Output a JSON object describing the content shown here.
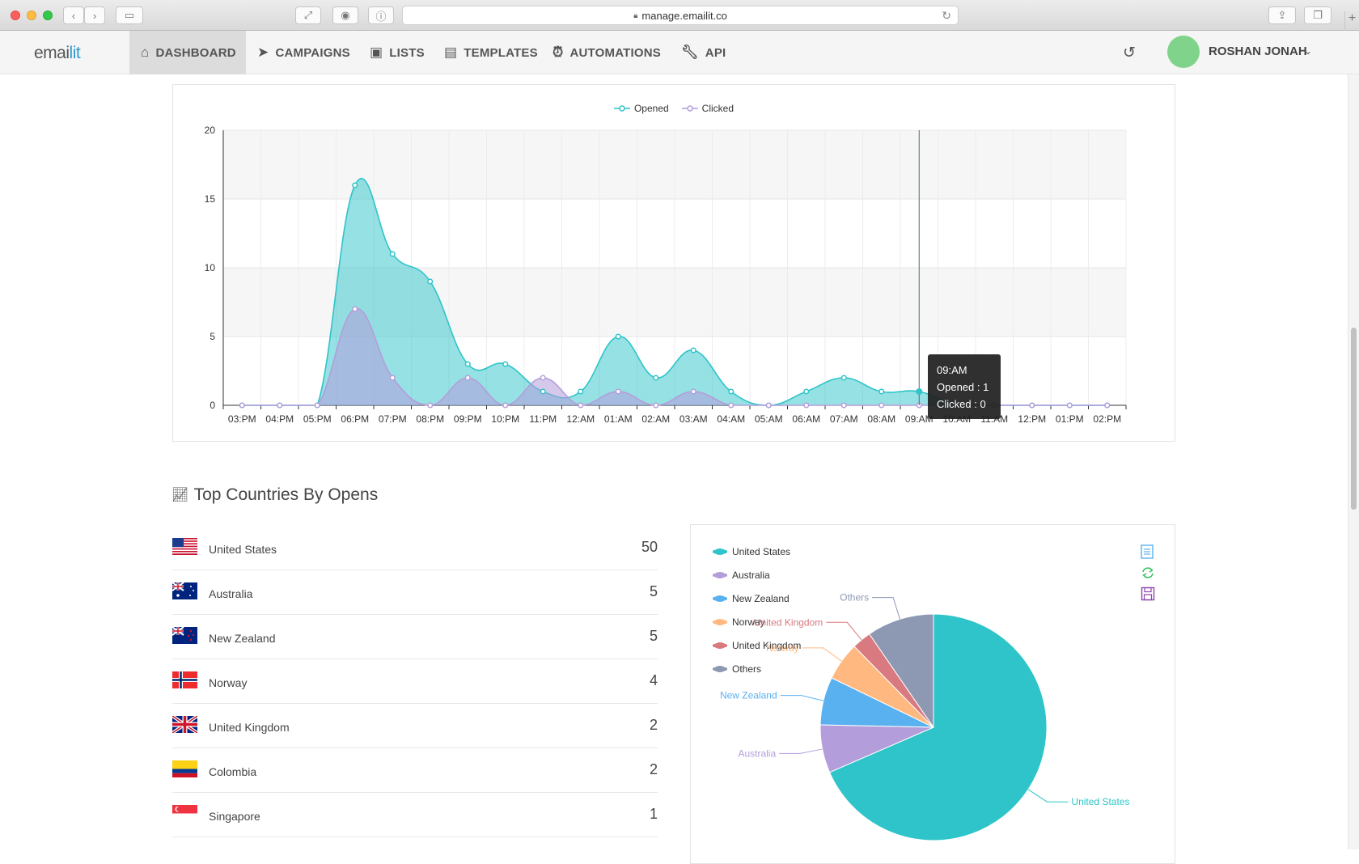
{
  "browser": {
    "url": "manage.emailit.co"
  },
  "nav": {
    "logo": "emailit",
    "items": [
      {
        "label": "DASHBOARD",
        "icon": "home-icon",
        "active": true
      },
      {
        "label": "CAMPAIGNS",
        "icon": "paper-plane-icon",
        "active": false
      },
      {
        "label": "LISTS",
        "icon": "address-book-icon",
        "active": false
      },
      {
        "label": "TEMPLATES",
        "icon": "newspaper-icon",
        "active": false
      },
      {
        "label": "AUTOMATIONS",
        "icon": "alarm-clock-icon",
        "active": false
      },
      {
        "label": "API",
        "icon": "wrench-icon",
        "active": false
      }
    ],
    "user_name": "ROSHAN JONAH"
  },
  "line_chart": {
    "chart_data": {
      "type": "area",
      "x": [
        "03:PM",
        "04:PM",
        "05:PM",
        "06:PM",
        "07:PM",
        "08:PM",
        "09:PM",
        "10:PM",
        "11:PM",
        "12:AM",
        "01:AM",
        "02:AM",
        "03:AM",
        "04:AM",
        "05:AM",
        "06:AM",
        "07:AM",
        "08:AM",
        "09:AM",
        "10:AM",
        "11:AM",
        "12:PM",
        "01:PM",
        "02:PM"
      ],
      "series": [
        {
          "name": "Opened",
          "color": "#2ec4c9",
          "values": [
            0,
            0,
            0,
            16,
            11,
            9,
            3,
            3,
            1,
            1,
            5,
            2,
            4,
            1,
            0,
            1,
            2,
            1,
            1,
            0,
            0,
            0,
            0,
            0
          ]
        },
        {
          "name": "Clicked",
          "color": "#b39ddb",
          "values": [
            0,
            0,
            0,
            7,
            2,
            0,
            2,
            0,
            2,
            0,
            1,
            0,
            1,
            0,
            0,
            0,
            0,
            0,
            0,
            0,
            0,
            0,
            0,
            0
          ]
        }
      ],
      "ylim": [
        0,
        20
      ],
      "yticks": [
        0,
        5,
        10,
        15,
        20
      ],
      "legend": "top-center",
      "grid": true
    },
    "tooltip": {
      "time": "09:AM",
      "opened": "Opened : 1",
      "clicked": "Clicked : 0"
    }
  },
  "countries_section": {
    "title": "Top Countries By Opens",
    "rows": [
      {
        "name": "United States",
        "count": "50",
        "flag": "us"
      },
      {
        "name": "Australia",
        "count": "5",
        "flag": "au"
      },
      {
        "name": "New Zealand",
        "count": "5",
        "flag": "nz"
      },
      {
        "name": "Norway",
        "count": "4",
        "flag": "no"
      },
      {
        "name": "United Kingdom",
        "count": "2",
        "flag": "gb"
      },
      {
        "name": "Colombia",
        "count": "2",
        "flag": "co"
      },
      {
        "name": "Singapore",
        "count": "1",
        "flag": "sg"
      }
    ]
  },
  "pie_chart": {
    "chart_data": {
      "type": "pie",
      "legend": "top-left",
      "slices": [
        {
          "name": "United States",
          "value": 50,
          "color": "#2ec4c9"
        },
        {
          "name": "Australia",
          "value": 5,
          "color": "#b39ddb"
        },
        {
          "name": "New Zealand",
          "value": 5,
          "color": "#5ab1ef"
        },
        {
          "name": "Norway",
          "value": 4,
          "color": "#ffb980"
        },
        {
          "name": "United Kingdom",
          "value": 2,
          "color": "#d87a80"
        },
        {
          "name": "Others",
          "value": 7,
          "color": "#8d98b3"
        }
      ]
    },
    "toolbox": [
      "data-view-icon",
      "refresh-icon",
      "save-image-icon"
    ]
  }
}
